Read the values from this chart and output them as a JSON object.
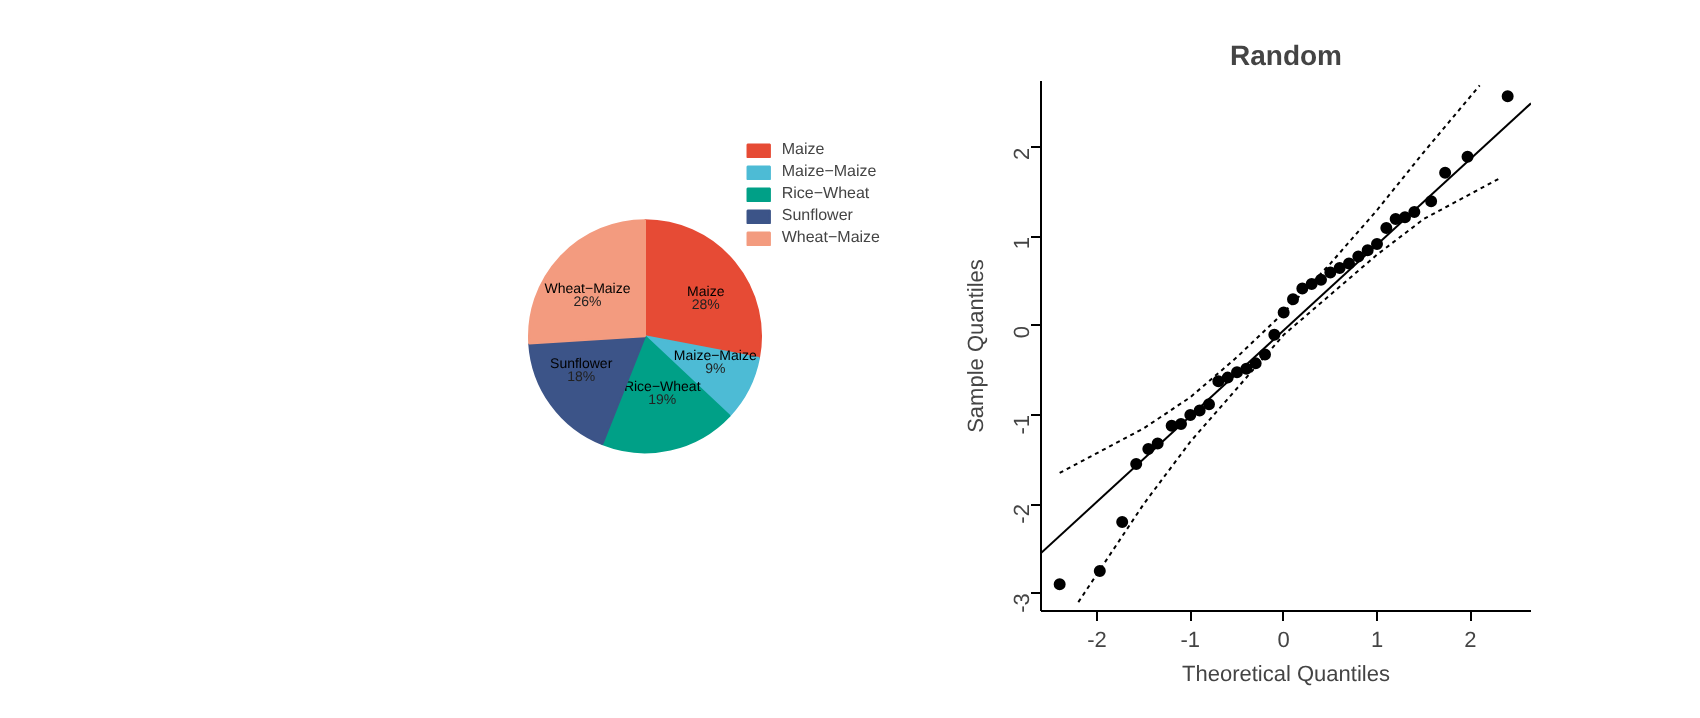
{
  "chart_data": [
    {
      "type": "pie",
      "categories": [
        "Maize",
        "Maize−Maize",
        "Rice−Wheat",
        "Sunflower",
        "Wheat−Maize"
      ],
      "values": [
        28,
        9,
        19,
        18,
        26
      ],
      "value_labels": [
        "28%",
        "9%",
        "19%",
        "18%",
        "26%"
      ],
      "colors": [
        "#e64b35",
        "#4dbbd5",
        "#00a087",
        "#3c5488",
        "#f39b7f"
      ],
      "legend": "top right"
    },
    {
      "type": "scatter",
      "title": "Random",
      "xlabel": "Theoretical Quantiles",
      "ylabel": "Sample Quantiles",
      "xlim": [
        -2.6,
        2.65
      ],
      "ylim": [
        -3.2,
        2.75
      ],
      "xticks": [
        -2,
        -1,
        0,
        1,
        2
      ],
      "yticks": [
        -3,
        -2,
        -1,
        0,
        1,
        2
      ],
      "grid": false,
      "series": [
        {
          "type": "scatter",
          "color": "#000000",
          "marker": "circle",
          "x": [
            -2.4,
            -1.97,
            -1.73,
            -1.58,
            -1.45,
            -1.35,
            -1.2,
            -1.1,
            -1.0,
            -0.9,
            -0.8,
            -0.7,
            -0.6,
            -0.5,
            -0.4,
            -0.3,
            -0.2,
            -0.1,
            0,
            0.1,
            0.2,
            0.3,
            0.4,
            0.5,
            0.6,
            0.7,
            0.8,
            0.9,
            1.0,
            1.1,
            1.2,
            1.3,
            1.4,
            1.58,
            1.73,
            1.97,
            2.4
          ],
          "values": [
            -2.9,
            -2.75,
            -2.2,
            -1.55,
            -1.38,
            -1.32,
            -1.12,
            -1.1,
            -1.0,
            -0.95,
            -0.88,
            -0.62,
            -0.58,
            -0.52,
            -0.48,
            -0.42,
            -0.32,
            -0.1,
            0.15,
            0.3,
            0.42,
            0.47,
            0.52,
            0.6,
            0.65,
            0.7,
            0.78,
            0.85,
            0.92,
            1.1,
            1.2,
            1.22,
            1.28,
            1.4,
            1.72,
            1.9,
            2.58
          ]
        },
        {
          "type": "line",
          "color": "#000000",
          "line_style": "solid",
          "x": [
            -2.6,
            2.65
          ],
          "values": [
            -2.55,
            2.5
          ]
        },
        {
          "type": "line",
          "color": "#000000",
          "line_style": "dotted",
          "x": [
            -2.4,
            -1.5,
            -1,
            -0.5,
            0,
            0.5,
            1,
            1.5,
            2.1
          ],
          "values": [
            -1.65,
            -1.15,
            -0.8,
            -0.35,
            0.15,
            0.7,
            1.3,
            1.95,
            2.7
          ]
        },
        {
          "type": "line",
          "color": "#000000",
          "line_style": "dotted",
          "x": [
            -2.2,
            -1.5,
            -1,
            -0.5,
            0,
            0.5,
            1,
            1.5,
            2.3
          ],
          "values": [
            -3.1,
            -2.0,
            -1.3,
            -0.7,
            -0.1,
            0.35,
            0.8,
            1.2,
            1.65
          ]
        }
      ]
    }
  ]
}
